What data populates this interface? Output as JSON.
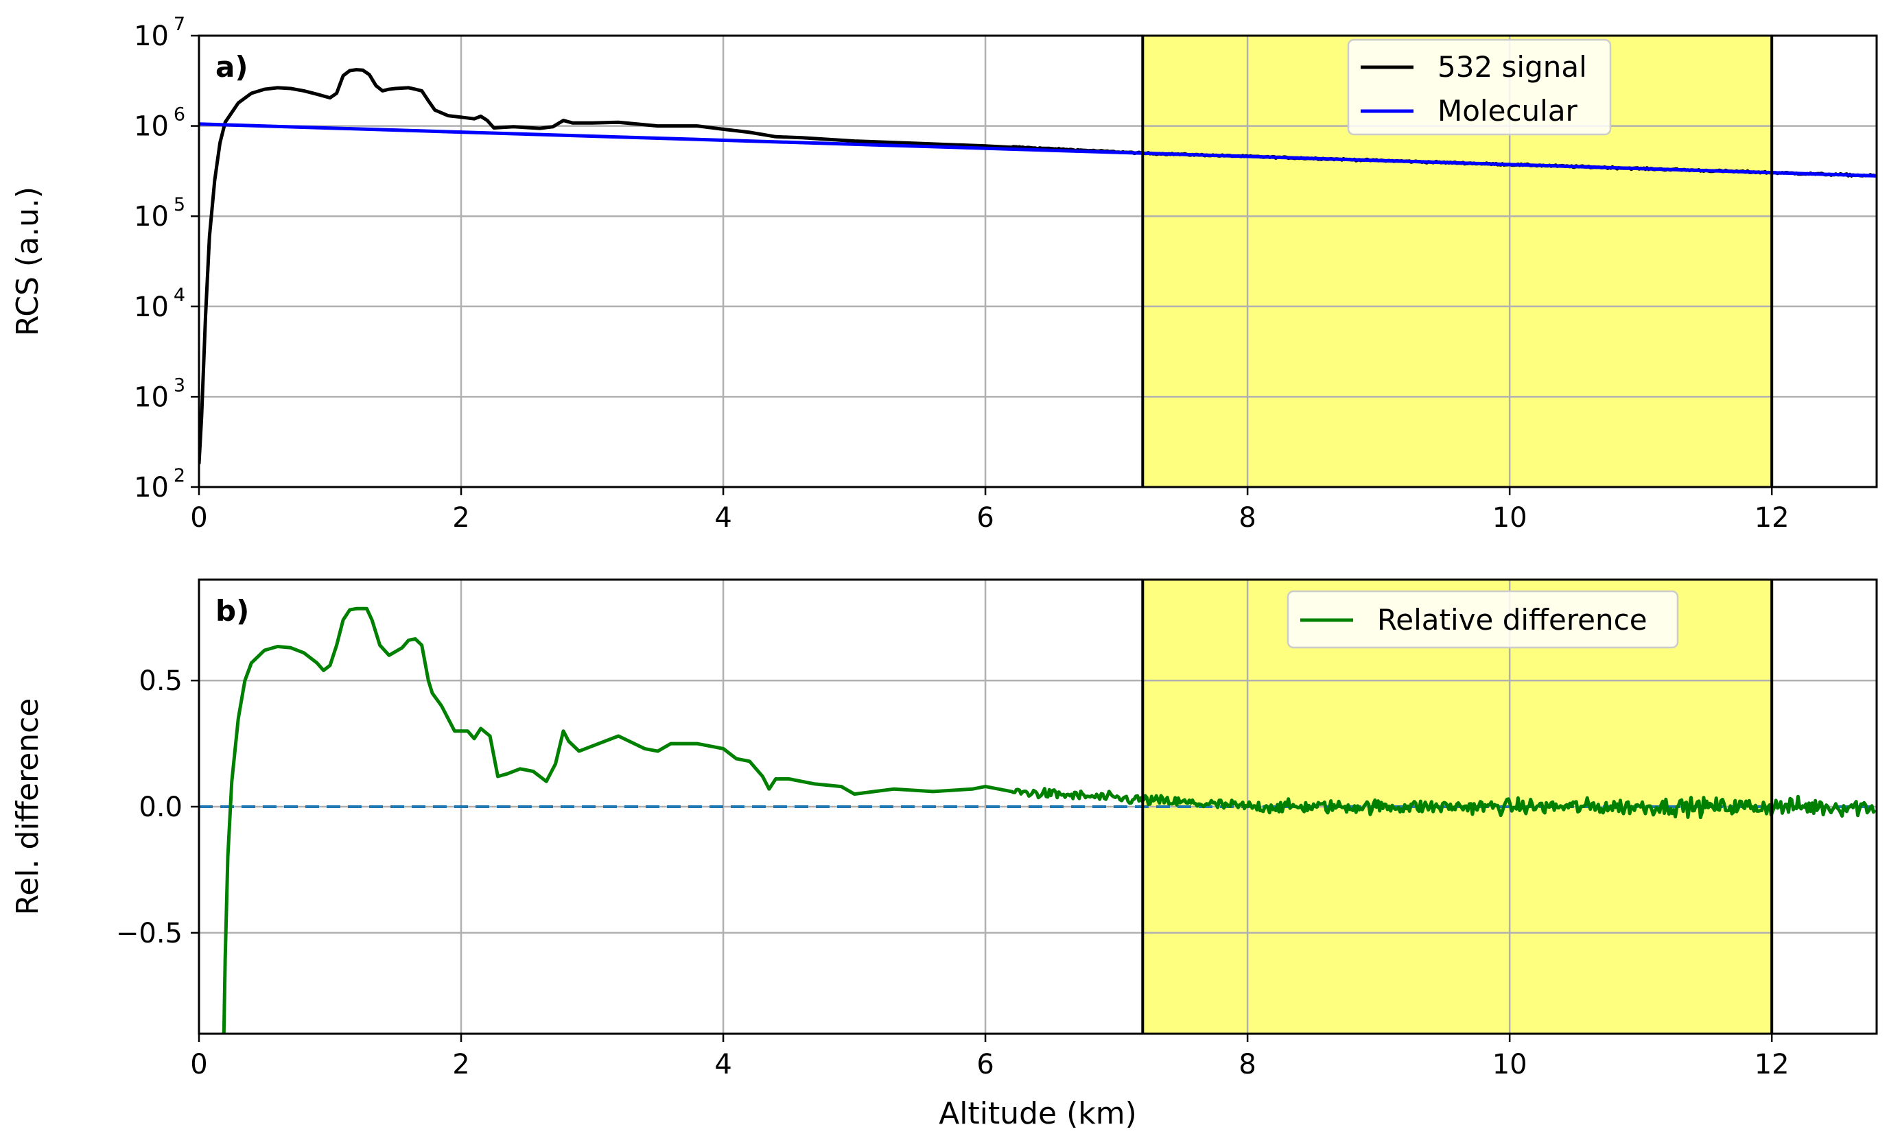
{
  "chart_data": [
    {
      "panel": "a)",
      "type": "line",
      "ylabel": "RCS (a.u.)",
      "yscale": "log",
      "xlim": [
        0,
        12.8
      ],
      "ylim": [
        100,
        10000000
      ],
      "xticks": [
        0,
        2,
        4,
        6,
        8,
        10,
        12
      ],
      "xtick_labels": [
        "0",
        "2",
        "4",
        "6",
        "8",
        "10",
        "12"
      ],
      "yticks": [
        100,
        1000,
        10000,
        100000,
        1000000,
        10000000
      ],
      "ytick_labels": [
        {
          "base": "10",
          "exp": "2"
        },
        {
          "base": "10",
          "exp": "3"
        },
        {
          "base": "10",
          "exp": "4"
        },
        {
          "base": "10",
          "exp": "5"
        },
        {
          "base": "10",
          "exp": "6"
        },
        {
          "base": "10",
          "exp": "7"
        }
      ],
      "grid": true,
      "legend": "top-right",
      "highlight": {
        "x_start": 7.2,
        "x_end": 12.0,
        "color": "#ffff7f"
      },
      "series": [
        {
          "name": "532 signal",
          "color": "#000000",
          "noise_start": 6.2,
          "points": [
            [
              0.0,
              180
            ],
            [
              0.02,
              600
            ],
            [
              0.05,
              8000
            ],
            [
              0.08,
              60000
            ],
            [
              0.12,
              250000
            ],
            [
              0.16,
              650000
            ],
            [
              0.2,
              1100000
            ],
            [
              0.3,
              1800000
            ],
            [
              0.4,
              2300000
            ],
            [
              0.5,
              2550000
            ],
            [
              0.6,
              2650000
            ],
            [
              0.7,
              2600000
            ],
            [
              0.8,
              2450000
            ],
            [
              0.9,
              2250000
            ],
            [
              1.0,
              2050000
            ],
            [
              1.05,
              2300000
            ],
            [
              1.1,
              3600000
            ],
            [
              1.15,
              4100000
            ],
            [
              1.2,
              4200000
            ],
            [
              1.25,
              4150000
            ],
            [
              1.3,
              3700000
            ],
            [
              1.35,
              2800000
            ],
            [
              1.4,
              2450000
            ],
            [
              1.45,
              2550000
            ],
            [
              1.5,
              2600000
            ],
            [
              1.6,
              2650000
            ],
            [
              1.65,
              2550000
            ],
            [
              1.7,
              2450000
            ],
            [
              1.75,
              1900000
            ],
            [
              1.8,
              1500000
            ],
            [
              1.9,
              1300000
            ],
            [
              2.0,
              1250000
            ],
            [
              2.1,
              1200000
            ],
            [
              2.15,
              1280000
            ],
            [
              2.2,
              1150000
            ],
            [
              2.25,
              950000
            ],
            [
              2.4,
              980000
            ],
            [
              2.6,
              940000
            ],
            [
              2.7,
              980000
            ],
            [
              2.78,
              1150000
            ],
            [
              2.85,
              1080000
            ],
            [
              3.0,
              1080000
            ],
            [
              3.2,
              1100000
            ],
            [
              3.5,
              1000000
            ],
            [
              3.8,
              1000000
            ],
            [
              4.0,
              920000
            ],
            [
              4.2,
              850000
            ],
            [
              4.4,
              760000
            ],
            [
              4.6,
              740000
            ],
            [
              5.0,
              680000
            ],
            [
              5.5,
              640000
            ],
            [
              6.0,
              600000
            ],
            [
              6.2,
              580000
            ]
          ]
        },
        {
          "name": "Molecular",
          "color": "#0000ff",
          "points": [
            [
              0.0,
              1050000
            ],
            [
              12.8,
              280000
            ]
          ]
        }
      ]
    },
    {
      "panel": "b)",
      "type": "line",
      "xlabel": "Altitude (km)",
      "ylabel": "Rel. difference",
      "xlim": [
        0,
        12.8
      ],
      "ylim": [
        -0.9,
        0.9
      ],
      "xticks": [
        0,
        2,
        4,
        6,
        8,
        10,
        12
      ],
      "xtick_labels": [
        "0",
        "2",
        "4",
        "6",
        "8",
        "10",
        "12"
      ],
      "yticks": [
        -0.5,
        0.0,
        0.5
      ],
      "ytick_labels": [
        "−0.5",
        "0.0",
        "0.5"
      ],
      "grid": true,
      "legend": "top-right",
      "highlight": {
        "x_start": 7.2,
        "x_end": 12.0,
        "color": "#ffff7f"
      },
      "reference_line": {
        "y": 0.0,
        "color": "#1f77b4",
        "style": "dashed"
      },
      "series": [
        {
          "name": "Relative difference",
          "color": "#008000",
          "noise_start": 6.2,
          "points": [
            [
              0.19,
              -0.9
            ],
            [
              0.2,
              -0.6
            ],
            [
              0.22,
              -0.2
            ],
            [
              0.25,
              0.1
            ],
            [
              0.3,
              0.35
            ],
            [
              0.35,
              0.5
            ],
            [
              0.4,
              0.57
            ],
            [
              0.5,
              0.62
            ],
            [
              0.6,
              0.635
            ],
            [
              0.7,
              0.63
            ],
            [
              0.8,
              0.61
            ],
            [
              0.9,
              0.57
            ],
            [
              0.95,
              0.54
            ],
            [
              1.0,
              0.56
            ],
            [
              1.05,
              0.64
            ],
            [
              1.1,
              0.74
            ],
            [
              1.15,
              0.78
            ],
            [
              1.2,
              0.785
            ],
            [
              1.28,
              0.785
            ],
            [
              1.32,
              0.74
            ],
            [
              1.38,
              0.64
            ],
            [
              1.45,
              0.6
            ],
            [
              1.55,
              0.63
            ],
            [
              1.6,
              0.66
            ],
            [
              1.65,
              0.665
            ],
            [
              1.7,
              0.64
            ],
            [
              1.75,
              0.5
            ],
            [
              1.78,
              0.45
            ],
            [
              1.85,
              0.4
            ],
            [
              1.95,
              0.3
            ],
            [
              2.05,
              0.3
            ],
            [
              2.1,
              0.27
            ],
            [
              2.15,
              0.31
            ],
            [
              2.22,
              0.28
            ],
            [
              2.25,
              0.2
            ],
            [
              2.28,
              0.12
            ],
            [
              2.35,
              0.13
            ],
            [
              2.45,
              0.15
            ],
            [
              2.55,
              0.14
            ],
            [
              2.65,
              0.1
            ],
            [
              2.72,
              0.17
            ],
            [
              2.78,
              0.3
            ],
            [
              2.82,
              0.26
            ],
            [
              2.9,
              0.22
            ],
            [
              3.0,
              0.24
            ],
            [
              3.2,
              0.28
            ],
            [
              3.4,
              0.23
            ],
            [
              3.5,
              0.22
            ],
            [
              3.6,
              0.25
            ],
            [
              3.8,
              0.25
            ],
            [
              4.0,
              0.23
            ],
            [
              4.1,
              0.19
            ],
            [
              4.2,
              0.18
            ],
            [
              4.3,
              0.12
            ],
            [
              4.35,
              0.07
            ],
            [
              4.4,
              0.11
            ],
            [
              4.5,
              0.11
            ],
            [
              4.7,
              0.09
            ],
            [
              4.9,
              0.08
            ],
            [
              5.0,
              0.05
            ],
            [
              5.3,
              0.07
            ],
            [
              5.6,
              0.06
            ],
            [
              5.9,
              0.07
            ],
            [
              6.0,
              0.08
            ],
            [
              6.2,
              0.06
            ]
          ]
        }
      ]
    }
  ]
}
